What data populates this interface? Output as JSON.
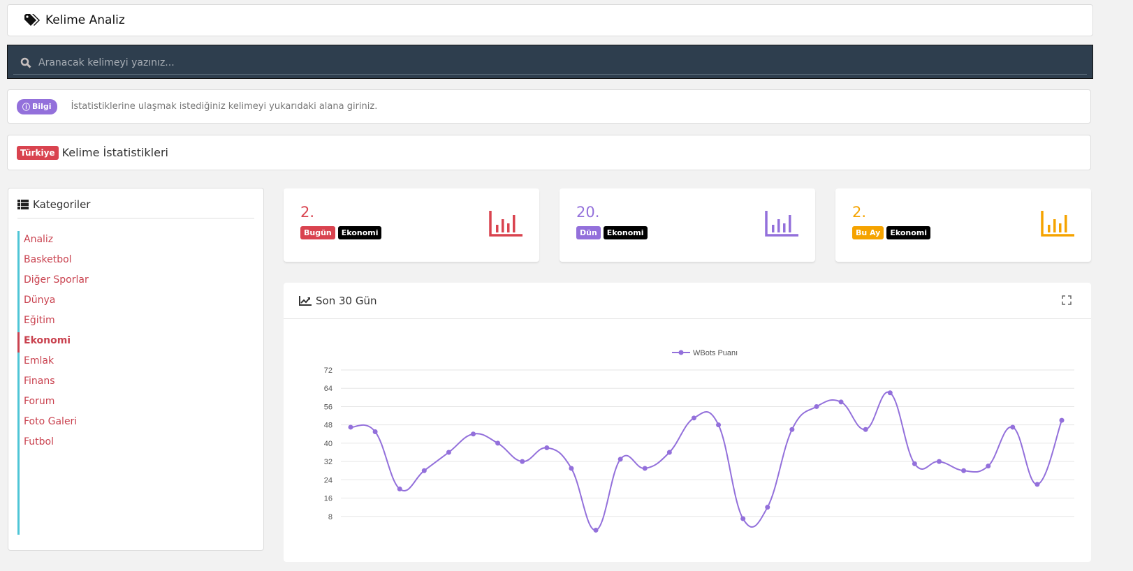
{
  "header": {
    "title": "Kelime Analiz",
    "icon": "tags-icon"
  },
  "search": {
    "placeholder": "Aranacak kelimeyi yazınız...",
    "value": ""
  },
  "info": {
    "badge": "Bilgi",
    "text": "İstatistiklerine ulaşmak istediğiniz kelimeyi yukarıdaki alana giriniz."
  },
  "stats_header": {
    "badge": "Türkiye",
    "title": "Kelime İstatistikleri"
  },
  "sidebar": {
    "title": "Kategoriler",
    "items": [
      "Analiz",
      "Basketbol",
      "Diğer Sporlar",
      "Dünya",
      "Eğitim",
      "Ekonomi",
      "Emlak",
      "Finans",
      "Forum",
      "Foto Galeri",
      "Futbol",
      "",
      "",
      "",
      ""
    ],
    "active": "Ekonomi"
  },
  "stat_cards": [
    {
      "rank": "2.",
      "period": "Bugün",
      "category": "Ekonomi",
      "color": "#d9434f"
    },
    {
      "rank": "20.",
      "period": "Dün",
      "category": "Ekonomi",
      "color": "#9370db"
    },
    {
      "rank": "2.",
      "period": "Bu Ay",
      "category": "Ekonomi",
      "color": "#f5a300"
    }
  ],
  "chart_card": {
    "title": "Son 30 Gün"
  },
  "chart_data": {
    "type": "line",
    "title": "",
    "ylim": [
      0,
      72
    ],
    "yticks": [
      72,
      64,
      56,
      48,
      40,
      32,
      24,
      16,
      8
    ],
    "grid": true,
    "legend": "top",
    "color": "#9370db",
    "series": [
      {
        "name": "WBots Puanı",
        "values": [
          47,
          45,
          20,
          28,
          36,
          44,
          40,
          32,
          38,
          29,
          2,
          33,
          29,
          36,
          51,
          48,
          7,
          12,
          46,
          56,
          58,
          46,
          62,
          31,
          32,
          28,
          30,
          47,
          22,
          50
        ]
      }
    ]
  }
}
